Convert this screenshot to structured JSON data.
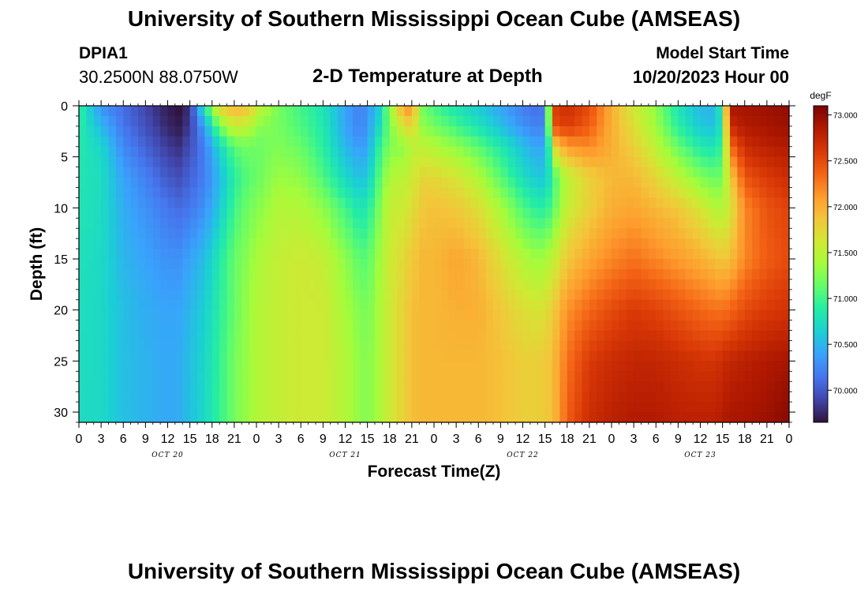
{
  "header": {
    "title": "University of Southern Mississippi Ocean Cube (AMSEAS)",
    "station": "DPIA1",
    "coords": "30.2500N  88.0750W",
    "subtitle": "2-D Temperature at Depth",
    "start_label": "Model Start Time",
    "start_value": "10/20/2023 Hour 00"
  },
  "footer": {
    "title": "University of Southern Mississippi Ocean Cube (AMSEAS)"
  },
  "colors": {
    "background": "#ffffff",
    "axis": "#000000",
    "colormap": [
      "#30123b",
      "#4145ab",
      "#4675ed",
      "#39a2fc",
      "#1bcfd4",
      "#24eca6",
      "#61fc6c",
      "#a4fc3b",
      "#d1e834",
      "#f3c63a",
      "#fe9b2d",
      "#f36315",
      "#d93806",
      "#b11901",
      "#7a0402"
    ]
  },
  "chart_data": {
    "type": "heatmap",
    "title": "2-D Temperature at Depth",
    "xlabel": "Forecast Time(Z)",
    "ylabel": "Depth (ft)",
    "x_range_hours": [
      0,
      96
    ],
    "y_range_ft": [
      0,
      31
    ],
    "x_tick_labels": [
      "0",
      "3",
      "6",
      "9",
      "12",
      "15",
      "18",
      "21",
      "0",
      "3",
      "6",
      "9",
      "12",
      "15",
      "18",
      "21",
      "0",
      "3",
      "6",
      "9",
      "12",
      "15",
      "18",
      "21",
      "0",
      "3",
      "6",
      "9",
      "12",
      "15",
      "18",
      "21",
      "0"
    ],
    "x_tick_step_hours": 3,
    "day_labels": [
      "OCT 20",
      "OCT 21",
      "OCT 22",
      "OCT 23"
    ],
    "y_ticks": [
      0,
      5,
      10,
      15,
      20,
      25,
      30
    ],
    "colorbar": {
      "unit": "degF",
      "range": [
        69.65,
        73.1
      ],
      "ticks": [
        70.0,
        70.5,
        71.0,
        71.5,
        72.0,
        72.5,
        73.0
      ],
      "tick_labels": [
        "70.000",
        "70.500",
        "71.000",
        "71.500",
        "72.000",
        "72.500",
        "73.000"
      ]
    },
    "sample_hours": [
      0,
      3,
      6,
      9,
      12,
      13.5,
      15,
      17,
      19,
      21,
      23,
      24,
      27,
      30,
      33,
      36,
      38,
      39,
      40.5,
      42,
      44,
      45,
      46.5,
      48,
      51,
      54,
      57,
      60,
      62,
      63,
      64,
      64.5,
      66,
      69,
      72,
      75,
      78,
      81,
      84,
      86,
      87,
      88,
      90,
      93,
      96
    ],
    "sample_depths_ft": [
      0,
      2,
      4,
      7,
      10,
      15,
      20,
      25,
      31
    ],
    "temperature_degF": [
      [
        70.95,
        70.9,
        70.85,
        70.82,
        70.8,
        70.78,
        70.76,
        70.75,
        70.74
      ],
      [
        70.3,
        70.5,
        70.7,
        70.75,
        70.75,
        70.72,
        70.72,
        70.72,
        70.72
      ],
      [
        70.1,
        70.15,
        70.25,
        70.4,
        70.45,
        70.5,
        70.55,
        70.55,
        70.55
      ],
      [
        69.9,
        69.95,
        70.05,
        70.2,
        70.3,
        70.4,
        70.45,
        70.48,
        70.48
      ],
      [
        69.7,
        69.75,
        69.85,
        70.0,
        70.15,
        70.3,
        70.4,
        70.42,
        70.42
      ],
      [
        69.65,
        69.7,
        69.8,
        69.95,
        70.1,
        70.3,
        70.42,
        70.45,
        70.45
      ],
      [
        69.8,
        69.85,
        69.95,
        70.05,
        70.15,
        70.4,
        70.5,
        70.55,
        70.55
      ],
      [
        70.9,
        70.4,
        70.2,
        70.2,
        70.3,
        70.55,
        70.65,
        70.7,
        70.72
      ],
      [
        71.8,
        71.2,
        70.7,
        70.5,
        70.6,
        70.85,
        70.9,
        70.95,
        70.95
      ],
      [
        72.0,
        71.6,
        71.1,
        70.9,
        71.0,
        71.15,
        71.15,
        71.2,
        71.2
      ],
      [
        71.9,
        71.5,
        71.2,
        71.1,
        71.2,
        71.3,
        71.35,
        71.35,
        71.35
      ],
      [
        71.6,
        71.3,
        71.15,
        71.15,
        71.25,
        71.4,
        71.45,
        71.45,
        71.45
      ],
      [
        71.2,
        71.2,
        71.25,
        71.35,
        71.45,
        71.55,
        71.55,
        71.55,
        71.55
      ],
      [
        71.0,
        71.05,
        71.15,
        71.3,
        71.45,
        71.6,
        71.6,
        71.6,
        71.6
      ],
      [
        70.8,
        70.85,
        70.9,
        71.05,
        71.3,
        71.55,
        71.6,
        71.6,
        71.6
      ],
      [
        70.4,
        70.4,
        70.5,
        70.7,
        71.0,
        71.3,
        71.4,
        71.45,
        71.45
      ],
      [
        70.2,
        70.2,
        70.35,
        70.55,
        70.8,
        71.1,
        71.25,
        71.3,
        71.3
      ],
      [
        70.3,
        70.35,
        70.4,
        70.6,
        70.85,
        71.1,
        71.2,
        71.25,
        71.25
      ],
      [
        70.6,
        70.7,
        70.9,
        71.05,
        71.2,
        71.35,
        71.4,
        71.4,
        71.4
      ],
      [
        71.3,
        71.2,
        71.25,
        71.45,
        71.55,
        71.6,
        71.6,
        71.6,
        71.6
      ],
      [
        72.2,
        71.7,
        71.3,
        71.5,
        71.6,
        71.75,
        71.8,
        71.8,
        71.8
      ],
      [
        72.1,
        71.8,
        71.5,
        71.6,
        71.7,
        71.85,
        71.9,
        71.9,
        71.9
      ],
      [
        71.2,
        71.3,
        71.5,
        71.75,
        71.85,
        71.95,
        71.95,
        71.95,
        71.95
      ],
      [
        71.0,
        71.2,
        71.45,
        71.75,
        71.9,
        71.95,
        71.95,
        71.95,
        71.95
      ],
      [
        70.8,
        71.0,
        71.3,
        71.65,
        71.85,
        72.05,
        72.0,
        71.95,
        71.95
      ],
      [
        70.6,
        70.8,
        71.1,
        71.45,
        71.7,
        71.95,
        72.0,
        71.95,
        71.95
      ],
      [
        70.4,
        70.55,
        70.85,
        71.1,
        71.4,
        71.7,
        71.85,
        71.9,
        71.9
      ],
      [
        70.2,
        70.3,
        70.55,
        70.75,
        71.05,
        71.45,
        71.7,
        71.8,
        71.8
      ],
      [
        70.1,
        70.2,
        70.4,
        70.6,
        70.9,
        71.35,
        71.65,
        71.8,
        71.8
      ],
      [
        70.2,
        70.25,
        70.45,
        70.6,
        70.9,
        71.4,
        71.7,
        71.85,
        71.85
      ],
      [
        72.3,
        72.1,
        71.3,
        70.9,
        71.05,
        71.5,
        71.8,
        71.9,
        71.9
      ],
      [
        72.6,
        72.5,
        71.8,
        71.1,
        71.2,
        71.6,
        71.9,
        72.0,
        72.0
      ],
      [
        72.7,
        72.6,
        72.1,
        71.5,
        71.55,
        71.85,
        72.15,
        72.3,
        72.4
      ],
      [
        72.5,
        72.4,
        72.2,
        71.8,
        71.8,
        72.05,
        72.35,
        72.6,
        72.7
      ],
      [
        72.0,
        72.0,
        72.0,
        71.95,
        72.0,
        72.2,
        72.5,
        72.7,
        72.8
      ],
      [
        71.6,
        71.7,
        71.8,
        71.95,
        72.05,
        72.3,
        72.6,
        72.75,
        72.85
      ],
      [
        71.3,
        71.35,
        71.5,
        71.75,
        71.95,
        72.2,
        72.55,
        72.75,
        72.85
      ],
      [
        70.8,
        70.9,
        71.15,
        71.5,
        71.85,
        72.1,
        72.45,
        72.7,
        72.8
      ],
      [
        70.5,
        70.6,
        70.85,
        71.25,
        71.65,
        72.0,
        72.35,
        72.65,
        72.8
      ],
      [
        70.5,
        70.55,
        70.8,
        71.15,
        71.45,
        71.9,
        72.3,
        72.65,
        72.8
      ],
      [
        71.0,
        70.9,
        71.0,
        71.2,
        71.45,
        71.85,
        72.3,
        72.7,
        72.85
      ],
      [
        72.9,
        72.7,
        72.3,
        71.8,
        71.6,
        71.9,
        72.35,
        72.75,
        72.9
      ],
      [
        72.9,
        72.85,
        72.7,
        72.45,
        72.2,
        72.2,
        72.5,
        72.8,
        72.9
      ],
      [
        72.95,
        72.9,
        72.8,
        72.6,
        72.45,
        72.4,
        72.6,
        72.85,
        72.95
      ],
      [
        73.0,
        72.95,
        72.85,
        72.7,
        72.55,
        72.5,
        72.65,
        72.9,
        73.05
      ]
    ]
  }
}
